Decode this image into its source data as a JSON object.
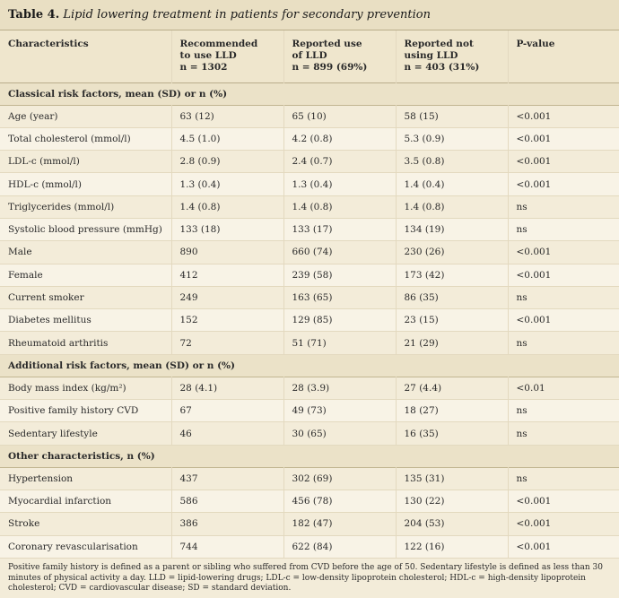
{
  "caption": {
    "label": "Table 4.",
    "title": "Lipid lowering treatment in patients for secondary prevention"
  },
  "columns": [
    [
      "Characteristics"
    ],
    [
      "Recommended",
      "to use LLD",
      "n = 1302"
    ],
    [
      "Reported use",
      "of LLD",
      "n = 899 (69%)"
    ],
    [
      "Reported not",
      "using LLD",
      "n = 403 (31%)"
    ],
    [
      "P-value"
    ]
  ],
  "sections": [
    {
      "title": "Classical risk factors, mean (SD) or n (%)",
      "rows": [
        [
          "Age (year)",
          "63 (12)",
          "65 (10)",
          "58 (15)",
          "<0.001"
        ],
        [
          "Total cholesterol (mmol/l)",
          "4.5 (1.0)",
          "4.2 (0.8)",
          "5.3 (0.9)",
          "<0.001"
        ],
        [
          "LDL-c (mmol/l)",
          "2.8 (0.9)",
          "2.4 (0.7)",
          "3.5 (0.8)",
          "<0.001"
        ],
        [
          "HDL-c (mmol/l)",
          "1.3 (0.4)",
          "1.3 (0.4)",
          "1.4 (0.4)",
          "<0.001"
        ],
        [
          "Triglycerides (mmol/l)",
          "1.4 (0.8)",
          "1.4 (0.8)",
          "1.4 (0.8)",
          "ns"
        ],
        [
          "Systolic blood pressure (mmHg)",
          "133 (18)",
          "133 (17)",
          "134 (19)",
          "ns"
        ],
        [
          "Male",
          "890",
          "660 (74)",
          "230 (26)",
          "<0.001"
        ],
        [
          "Female",
          "412",
          "239 (58)",
          "173 (42)",
          "<0.001"
        ],
        [
          "Current smoker",
          "249",
          "163 (65)",
          "86 (35)",
          "ns"
        ],
        [
          "Diabetes mellitus",
          "152",
          "129 (85)",
          "23 (15)",
          "<0.001"
        ],
        [
          "Rheumatoid arthritis",
          "72",
          "51 (71)",
          "21 (29)",
          "ns"
        ]
      ]
    },
    {
      "title": "Additional risk factors, mean (SD) or n (%)",
      "rows": [
        [
          "Body mass index (kg/m²)",
          "28 (4.1)",
          "28 (3.9)",
          "27 (4.4)",
          "<0.01"
        ],
        [
          "Positive family history CVD",
          "67",
          "49 (73)",
          "18 (27)",
          "ns"
        ],
        [
          "Sedentary lifestyle",
          "46",
          "30 (65)",
          "16 (35)",
          "ns"
        ]
      ]
    },
    {
      "title": "Other characteristics, n (%)",
      "rows": [
        [
          "Hypertension",
          "437",
          "302 (69)",
          "135 (31)",
          "ns"
        ],
        [
          "Myocardial infarction",
          "586",
          "456 (78)",
          "130 (22)",
          "<0.001"
        ],
        [
          "Stroke",
          "386",
          "182 (47)",
          "204 (53)",
          "<0.001"
        ],
        [
          "Coronary revascularisation",
          "744",
          "622 (84)",
          "122 (16)",
          "<0.001"
        ]
      ]
    }
  ],
  "footnote": "Positive family history is defined as a parent or sibling who suffered from CVD before the age of 50. Sedentary lifestyle is defined as less than 30 minutes of physical activity a day. LLD = lipid-lowering drugs; LDL-c = low-density lipoprotein cholesterol; HDL-c = high-density lipoprotein cholesterol; CVD = cardiovascular disease; SD = standard deviation."
}
